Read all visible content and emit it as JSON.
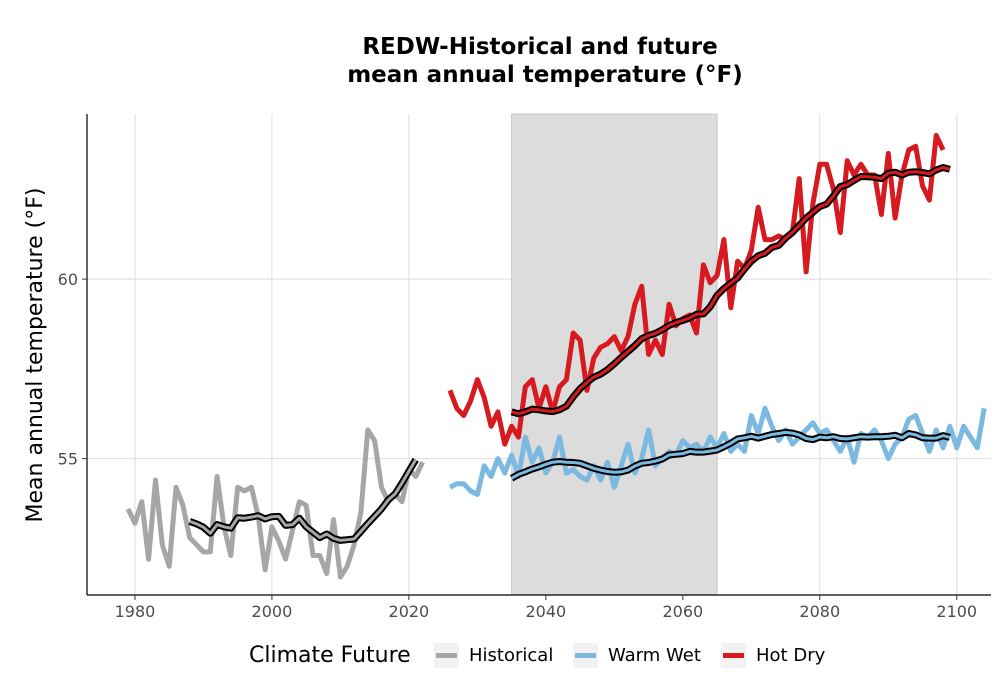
{
  "chart_data": {
    "type": "line",
    "title_lines": [
      "REDW-Historical and future",
      "mean annual temperature (°F)"
    ],
    "xlabel": "",
    "ylabel": "Mean annual temperature (°F)",
    "xlim": [
      1973,
      2105
    ],
    "ylim": [
      51.2,
      64.6
    ],
    "x_ticks": [
      1980,
      2000,
      2020,
      2040,
      2060,
      2080,
      2100
    ],
    "y_ticks": [
      55,
      60
    ],
    "grid": true,
    "shaded_period": [
      2035,
      2065
    ],
    "shaded_color": "#dcdcdc",
    "legend": {
      "title": "Climate Future",
      "placement": "bottom",
      "entries": [
        "Historical",
        "Warm Wet",
        "Hot Dry"
      ]
    },
    "series": [
      {
        "name": "Historical",
        "color": "#a6a6a6",
        "x_start": 1979,
        "values": [
          53.6,
          53.2,
          53.8,
          52.2,
          54.4,
          52.6,
          52.0,
          54.2,
          53.7,
          52.8,
          52.6,
          52.4,
          52.4,
          54.5,
          53.1,
          52.3,
          54.2,
          54.1,
          54.2,
          53.4,
          51.9,
          53.1,
          52.7,
          52.2,
          53.0,
          53.8,
          53.7,
          52.3,
          52.3,
          51.8,
          53.3,
          51.7,
          52.0,
          52.6,
          53.5,
          55.8,
          55.5,
          54.2,
          53.8,
          54.0,
          53.8,
          54.7,
          54.5,
          54.9
        ],
        "rolling_x_start": 1988,
        "rolling_values": [
          53.25,
          53.18,
          53.09,
          52.92,
          53.16,
          53.1,
          53.06,
          53.35,
          53.34,
          53.37,
          53.41,
          53.32,
          53.38,
          53.39,
          53.14,
          53.16,
          53.34,
          53.1,
          52.95,
          52.8,
          52.9,
          52.78,
          52.72,
          52.74,
          52.76,
          52.97,
          53.19,
          53.39,
          53.6,
          53.85,
          54.02,
          54.32,
          54.65,
          54.97
        ]
      },
      {
        "name": "Warm Wet",
        "color": "#7cb9e0",
        "x_start": 2026,
        "values": [
          54.2,
          54.3,
          54.3,
          54.1,
          54.0,
          54.8,
          54.5,
          55.0,
          54.6,
          55.1,
          54.5,
          55.6,
          54.9,
          55.3,
          54.6,
          54.9,
          55.6,
          54.6,
          54.7,
          54.5,
          54.4,
          54.8,
          54.4,
          54.9,
          54.2,
          54.8,
          55.4,
          54.6,
          55.0,
          55.8,
          54.8,
          55.0,
          55.2,
          55.1,
          55.5,
          55.3,
          55.4,
          55.2,
          55.6,
          55.3,
          55.7,
          55.2,
          55.4,
          55.2,
          56.2,
          55.7,
          56.4,
          55.9,
          55.5,
          55.8,
          55.4,
          55.6,
          55.8,
          56.0,
          55.7,
          55.8,
          55.5,
          55.2,
          55.6,
          54.9,
          55.7,
          55.6,
          55.8,
          55.5,
          55.0,
          55.4,
          55.6,
          56.1,
          56.2,
          55.7,
          55.2,
          55.8,
          55.3,
          55.9,
          55.3,
          55.9,
          55.6,
          55.3,
          56.4
        ],
        "rolling_x_start": 2035,
        "rolling_values": [
          54.45,
          54.56,
          54.63,
          54.71,
          54.77,
          54.84,
          54.9,
          54.92,
          54.9,
          54.89,
          54.87,
          54.8,
          54.73,
          54.68,
          54.64,
          54.62,
          54.63,
          54.68,
          54.79,
          54.87,
          54.89,
          54.93,
          54.99,
          55.1,
          55.12,
          55.14,
          55.2,
          55.18,
          55.18,
          55.21,
          55.24,
          55.33,
          55.43,
          55.55,
          55.58,
          55.62,
          55.57,
          55.62,
          55.67,
          55.7,
          55.73,
          55.71,
          55.66,
          55.56,
          55.53,
          55.6,
          55.58,
          55.61,
          55.56,
          55.55,
          55.58,
          55.61,
          55.6,
          55.61,
          55.61,
          55.62,
          55.65,
          55.58,
          55.7,
          55.66,
          55.58,
          55.57,
          55.57,
          55.64,
          55.59
        ]
      },
      {
        "name": "Hot Dry",
        "color": "#d61a1f",
        "x_start": 2026,
        "values": [
          56.9,
          56.4,
          56.2,
          56.6,
          57.2,
          56.7,
          55.9,
          56.3,
          55.4,
          55.9,
          55.6,
          57.0,
          57.2,
          56.4,
          57.0,
          56.3,
          57.0,
          57.2,
          58.5,
          58.3,
          56.9,
          57.8,
          58.1,
          58.2,
          58.4,
          58.0,
          58.4,
          59.3,
          59.8,
          57.9,
          58.3,
          57.9,
          59.3,
          58.7,
          58.9,
          59.0,
          58.5,
          60.4,
          59.9,
          60.1,
          61.1,
          59.2,
          60.5,
          60.3,
          60.8,
          62.0,
          61.1,
          61.1,
          61.2,
          61.1,
          61.3,
          62.8,
          60.2,
          62.1,
          63.2,
          63.2,
          62.5,
          61.3,
          63.3,
          62.9,
          63.2,
          62.9,
          62.9,
          61.8,
          63.5,
          61.7,
          62.9,
          63.6,
          63.7,
          62.6,
          62.2,
          64.0,
          63.6
        ],
        "rolling_x_start": 2035,
        "rolling_values": [
          56.3,
          56.25,
          56.3,
          56.38,
          56.36,
          56.33,
          56.31,
          56.36,
          56.46,
          56.72,
          56.95,
          57.12,
          57.27,
          57.35,
          57.48,
          57.64,
          57.82,
          57.98,
          58.15,
          58.34,
          58.43,
          58.49,
          58.59,
          58.71,
          58.79,
          58.85,
          58.92,
          59.02,
          59.03,
          59.23,
          59.55,
          59.74,
          59.89,
          60.03,
          60.28,
          60.5,
          60.65,
          60.72,
          60.88,
          60.94,
          61.14,
          61.3,
          61.5,
          61.7,
          61.86,
          62.02,
          62.09,
          62.32,
          62.58,
          62.63,
          62.75,
          62.86,
          62.85,
          62.84,
          62.8,
          62.95,
          62.98,
          62.9,
          62.98,
          62.99,
          62.97,
          62.93,
          63.04,
          63.11,
          63.06
        ]
      }
    ]
  }
}
